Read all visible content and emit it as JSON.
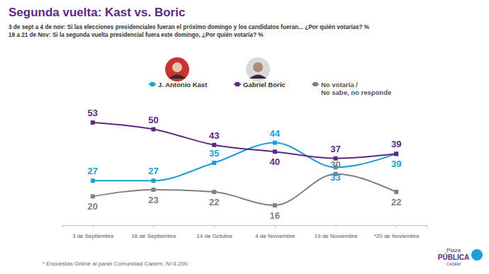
{
  "chart_data": {
    "type": "line",
    "title": "Segunda vuelta: Kast vs. Boric",
    "subtitle": [
      "3 de sept a 4 de nov: Si las elecciones presidenciales fueran el próximo domingo y los candidatos fueran... ¿Por quién votarías? %",
      "19 a 21 de Nov: Si la segunda vuelta presidencial fuera este domingo, ¿Por quién votaría? %"
    ],
    "categories": [
      "3 de Septiembre",
      "16 de Septiembre",
      "14 de Octubre",
      "4 de Noviembre",
      "19 de Noviembre",
      "*20 de Noviembre"
    ],
    "series": [
      {
        "name": "J. Antonio Kast",
        "color": "#1b9fd4",
        "values": [
          27,
          27,
          35,
          44,
          33,
          39
        ]
      },
      {
        "name": "Gabriel Boric",
        "color": "#5c2a86",
        "values": [
          53,
          50,
          43,
          40,
          37,
          39
        ]
      },
      {
        "name": "No votaría / No sabe, no responde",
        "color": "#808080",
        "values": [
          20,
          23,
          22,
          16,
          30,
          22
        ]
      }
    ],
    "ylim": [
      10,
      60
    ],
    "tick_labels": "x",
    "grid": false,
    "legend": "top",
    "data_labels": true,
    "marker": "square",
    "line_style": "solid",
    "footnote": "* Encuestas Online al panel Comunidad Cadem. N=3.200.",
    "source": [
      "Plaza",
      "PÚBLICA",
      "CADEM"
    ]
  }
}
